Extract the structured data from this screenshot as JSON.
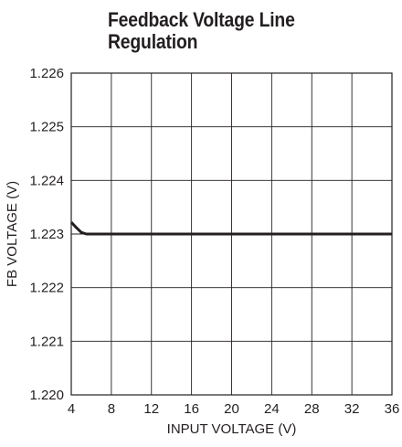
{
  "chart_data": {
    "type": "line",
    "title_lines": [
      "Feedback Voltage Line",
      "Regulation"
    ],
    "xlabel": "INPUT VOLTAGE (V)",
    "ylabel": "FB VOLTAGE (V)",
    "xlim": [
      4,
      36
    ],
    "ylim": [
      1.22,
      1.226
    ],
    "x_ticks": [
      4,
      8,
      12,
      16,
      20,
      24,
      28,
      32,
      36
    ],
    "x_tick_labels": [
      "4",
      "8",
      "12",
      "16",
      "20",
      "24",
      "28",
      "32",
      "36"
    ],
    "y_ticks": [
      1.22,
      1.221,
      1.222,
      1.223,
      1.224,
      1.225,
      1.226
    ],
    "y_tick_labels": [
      "1.220",
      "1.221",
      "1.222",
      "1.223",
      "1.224",
      "1.225",
      "1.226"
    ],
    "grid": true,
    "series": [
      {
        "color": "#231f20",
        "x": [
          4,
          4.5,
          5,
          5.5,
          6,
          8,
          12,
          16,
          20,
          24,
          28,
          32,
          36
        ],
        "y": [
          1.22322,
          1.22312,
          1.22303,
          1.223,
          1.223,
          1.223,
          1.223,
          1.223,
          1.223,
          1.223,
          1.223,
          1.223,
          1.223
        ]
      }
    ]
  }
}
